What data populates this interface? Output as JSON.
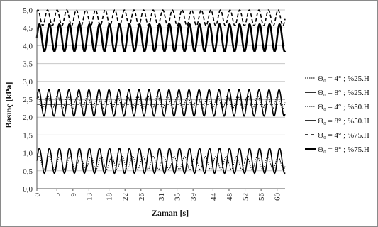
{
  "chart_data": {
    "type": "line",
    "title": "",
    "xlabel": "Zaman [s]",
    "ylabel": "Basınç [kPa]",
    "ylim": [
      0,
      5
    ],
    "xlim": [
      0,
      62
    ],
    "y_ticks": [
      "0,0",
      "0,5",
      "1,0",
      "1,5",
      "2,0",
      "2,5",
      "3,0",
      "3,5",
      "4,0",
      "4,5",
      "5,0"
    ],
    "x_ticks": [
      {
        "value": 0,
        "label": "0"
      },
      {
        "value": 5,
        "label": "5"
      },
      {
        "value": 9,
        "label": "9"
      },
      {
        "value": 13,
        "label": "13"
      },
      {
        "value": 18,
        "label": "18"
      },
      {
        "value": 22,
        "label": "22"
      },
      {
        "value": 26,
        "label": "26"
      },
      {
        "value": 31,
        "label": "31"
      },
      {
        "value": 35,
        "label": "35"
      },
      {
        "value": 39,
        "label": "39"
      },
      {
        "value": 44,
        "label": "44"
      },
      {
        "value": 48,
        "label": "48"
      },
      {
        "value": 52,
        "label": "52"
      },
      {
        "value": 56,
        "label": "56"
      },
      {
        "value": 60,
        "label": "60"
      }
    ],
    "grid": "horizontal",
    "legend_position": "right",
    "series": [
      {
        "name": "Θ₀ = 4° ; %25.H",
        "style": "dotted",
        "weight": "thin",
        "mean": 0.72,
        "amplitude": 0.18,
        "period": 2.6,
        "phase": 0.4
      },
      {
        "name": "Θ₀ = 8° ; %25.H",
        "style": "solid",
        "weight": "medium",
        "mean": 0.78,
        "amplitude": 0.35,
        "period": 2.5,
        "phase": 0.0
      },
      {
        "name": "Θ₀ = 4° ; %50.H",
        "style": "dotted",
        "weight": "thin",
        "mean": 2.42,
        "amplitude": 0.18,
        "period": 2.5,
        "phase": 1.2
      },
      {
        "name": "Θ₀ = 8° ; %50.H",
        "style": "solid",
        "weight": "medium",
        "mean": 2.4,
        "amplitude": 0.37,
        "period": 2.5,
        "phase": 0.3
      },
      {
        "name": "Θ₀ = 4° ; %75.H",
        "style": "dashed",
        "weight": "medium",
        "mean": 4.78,
        "amplitude": 0.22,
        "period": 2.4,
        "phase": 0.9
      },
      {
        "name": "Θ₀ = 8° ; %75.H",
        "style": "solid",
        "weight": "bold",
        "mean": 4.22,
        "amplitude": 0.38,
        "period": 2.5,
        "phase": 0.0
      }
    ],
    "reference_lines": [
      {
        "style": "dashed",
        "y": 2.35
      },
      {
        "style": "solid",
        "y": 2.5
      }
    ]
  },
  "colors": {
    "line": "#000000",
    "grid": "#c8c8c8",
    "border": "#8a8a8a"
  }
}
